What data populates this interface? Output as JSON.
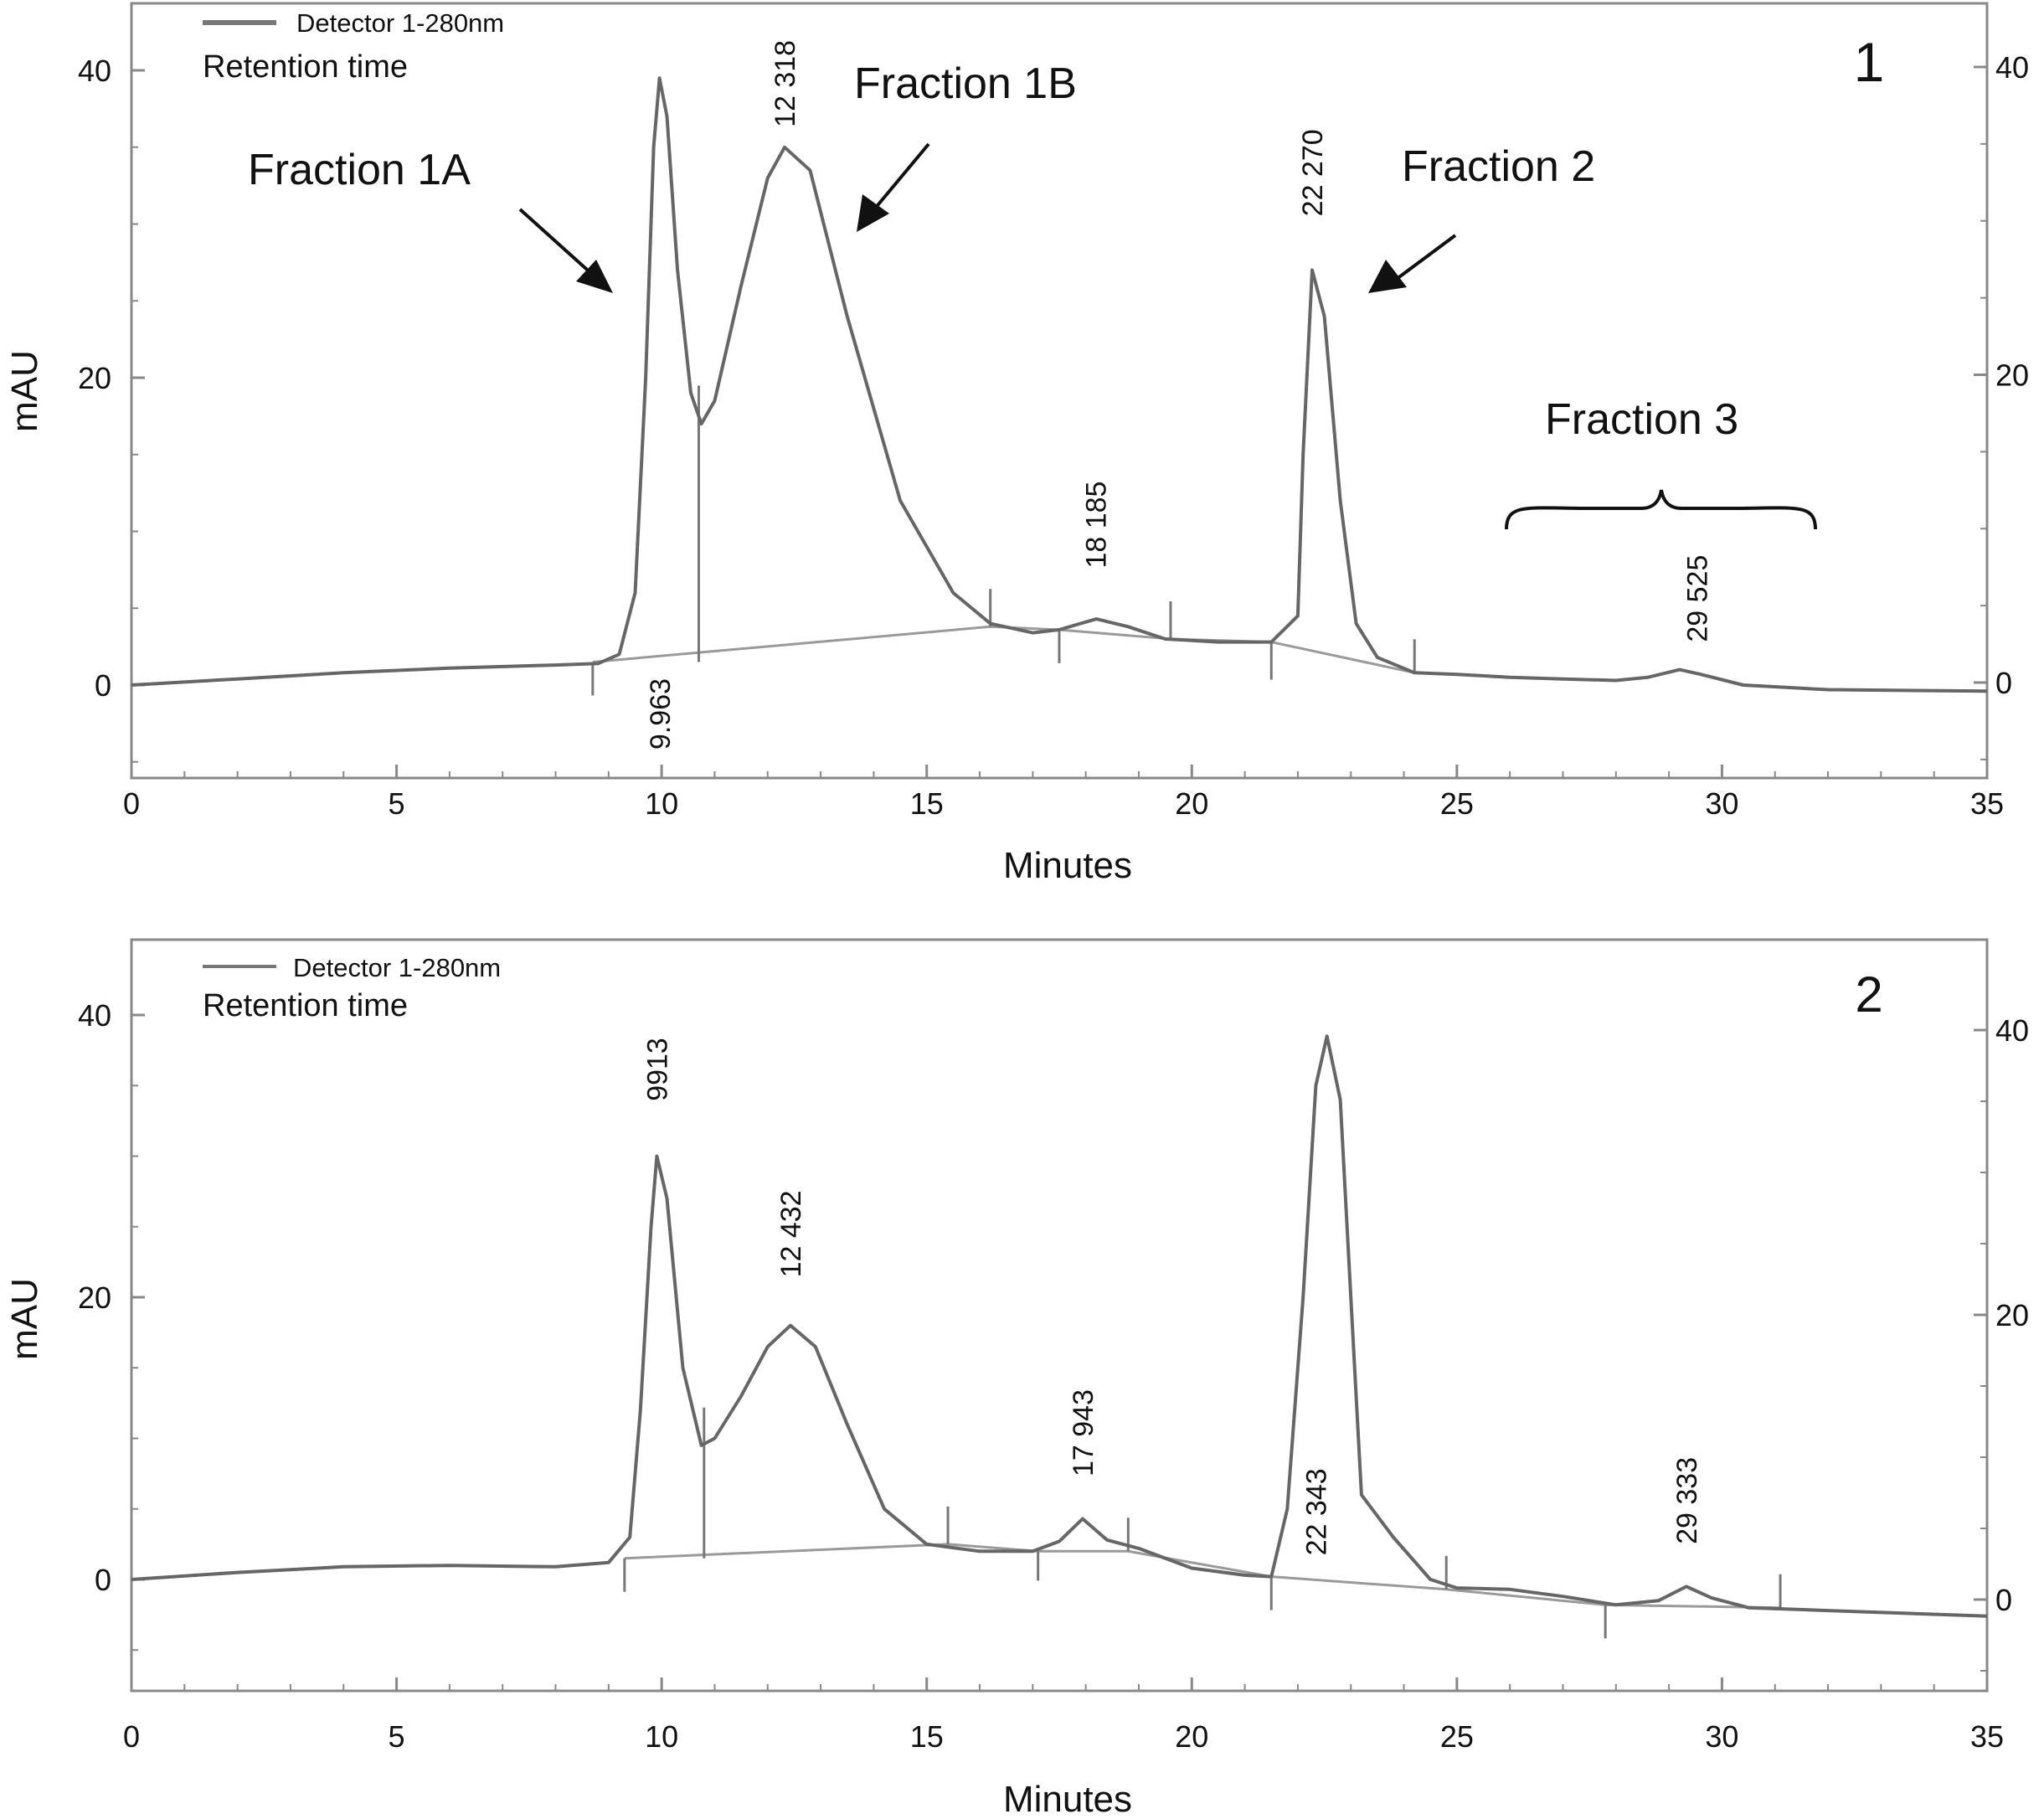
{
  "chart_data": [
    {
      "type": "line",
      "panel_label": "1",
      "legend_label": "Detector 1-280nm",
      "subtitle": "Retention time",
      "xlabel": "Minutes",
      "ylabel": "mAU",
      "xlim": [
        0,
        35
      ],
      "ylim": [
        -6,
        44
      ],
      "x_ticks": [
        0,
        5,
        10,
        15,
        20,
        25,
        30,
        35
      ],
      "y_ticks": [
        0,
        20,
        40
      ],
      "series": [
        {
          "points": [
            [
              0,
              0
            ],
            [
              2,
              0.4
            ],
            [
              4,
              0.8
            ],
            [
              6,
              1.1
            ],
            [
              8,
              1.3
            ],
            [
              8.8,
              1.4
            ],
            [
              9.2,
              2
            ],
            [
              9.5,
              6
            ],
            [
              9.7,
              20
            ],
            [
              9.85,
              35
            ],
            [
              9.96,
              39.5
            ],
            [
              10.1,
              37
            ],
            [
              10.3,
              27
            ],
            [
              10.55,
              19
            ],
            [
              10.75,
              17
            ],
            [
              11,
              18.5
            ],
            [
              11.5,
              26
            ],
            [
              12,
              33
            ],
            [
              12.32,
              35
            ],
            [
              12.8,
              33.5
            ],
            [
              13.5,
              24
            ],
            [
              14.5,
              12
            ],
            [
              15.5,
              6
            ],
            [
              16.2,
              4
            ],
            [
              17,
              3.4
            ],
            [
              17.5,
              3.6
            ],
            [
              18.2,
              4.3
            ],
            [
              18.8,
              3.8
            ],
            [
              19.5,
              3
            ],
            [
              20.5,
              2.8
            ],
            [
              21.5,
              2.8
            ],
            [
              22,
              4.5
            ],
            [
              22.1,
              15
            ],
            [
              22.27,
              27
            ],
            [
              22.5,
              24
            ],
            [
              22.8,
              12
            ],
            [
              23.1,
              4
            ],
            [
              23.5,
              1.8
            ],
            [
              24.2,
              0.8
            ],
            [
              25,
              0.7
            ],
            [
              26,
              0.5
            ],
            [
              27,
              0.4
            ],
            [
              28,
              0.3
            ],
            [
              28.6,
              0.5
            ],
            [
              29.2,
              1
            ],
            [
              29.6,
              0.7
            ],
            [
              30.4,
              0
            ],
            [
              32,
              -0.3
            ],
            [
              35,
              -0.4
            ]
          ]
        }
      ],
      "peak_labels": [
        {
          "text": "9.963",
          "x": 9.963,
          "y": -4.2
        },
        {
          "text": "12 318",
          "x": 12.318,
          "y": 36.3
        },
        {
          "text": "18 185",
          "x": 18.185,
          "y": 7.6
        },
        {
          "text": "22 270",
          "x": 22.27,
          "y": 30.5
        },
        {
          "text": "29 525",
          "x": 29.525,
          "y": 2.8
        }
      ],
      "annotations": [
        {
          "text": "Fraction 1A",
          "x": 4.5,
          "y": 33.3
        },
        {
          "text": "Fraction 1B",
          "x": 13.7,
          "y": 38.8
        },
        {
          "text": "Fraction 2",
          "x": 23.9,
          "y": 33.4
        },
        {
          "text": "Fraction 3",
          "x": 26.6,
          "y": 16.9
        }
      ]
    },
    {
      "type": "line",
      "panel_label": "2",
      "legend_label": "Detector 1-280nm",
      "subtitle": "Retention time",
      "xlabel": "Minutes",
      "ylabel": "mAU",
      "xlim": [
        0,
        35
      ],
      "ylim": [
        -8,
        45
      ],
      "x_ticks": [
        0,
        5,
        10,
        15,
        20,
        25,
        30,
        35
      ],
      "y_ticks": [
        0,
        20,
        40
      ],
      "series": [
        {
          "points": [
            [
              0,
              0
            ],
            [
              2,
              0.5
            ],
            [
              4,
              0.9
            ],
            [
              6,
              1
            ],
            [
              8,
              0.9
            ],
            [
              9,
              1.2
            ],
            [
              9.4,
              3
            ],
            [
              9.6,
              12
            ],
            [
              9.8,
              25
            ],
            [
              9.91,
              30
            ],
            [
              10.1,
              27
            ],
            [
              10.4,
              15
            ],
            [
              10.75,
              9.5
            ],
            [
              11,
              10
            ],
            [
              11.5,
              13
            ],
            [
              12,
              16.5
            ],
            [
              12.43,
              18
            ],
            [
              12.9,
              16.5
            ],
            [
              13.5,
              11
            ],
            [
              14.2,
              5
            ],
            [
              15,
              2.5
            ],
            [
              16,
              2
            ],
            [
              17,
              2
            ],
            [
              17.5,
              2.7
            ],
            [
              17.94,
              4.3
            ],
            [
              18.4,
              2.8
            ],
            [
              19,
              2.2
            ],
            [
              20,
              0.8
            ],
            [
              21,
              0.3
            ],
            [
              21.5,
              0.2
            ],
            [
              21.8,
              5
            ],
            [
              22.1,
              20
            ],
            [
              22.34,
              35
            ],
            [
              22.55,
              38.5
            ],
            [
              22.8,
              34
            ],
            [
              23,
              20
            ],
            [
              23.2,
              6
            ],
            [
              23.8,
              3
            ],
            [
              24.5,
              0
            ],
            [
              25,
              -0.6
            ],
            [
              26,
              -0.7
            ],
            [
              27,
              -1.2
            ],
            [
              28,
              -1.8
            ],
            [
              28.8,
              -1.5
            ],
            [
              29.33,
              -0.5
            ],
            [
              29.8,
              -1.3
            ],
            [
              30.5,
              -2
            ],
            [
              32,
              -2.2
            ],
            [
              35,
              -2.6
            ]
          ]
        }
      ],
      "peak_labels": [
        {
          "text": "9913",
          "x": 9.913,
          "y": 33.9
        },
        {
          "text": "12 432",
          "x": 12.432,
          "y": 21.4
        },
        {
          "text": "17 943",
          "x": 17.943,
          "y": 7.3
        },
        {
          "text": "22 343",
          "x": 22.343,
          "y": 1.7
        },
        {
          "text": "29 333",
          "x": 29.333,
          "y": 2.5
        }
      ]
    }
  ]
}
